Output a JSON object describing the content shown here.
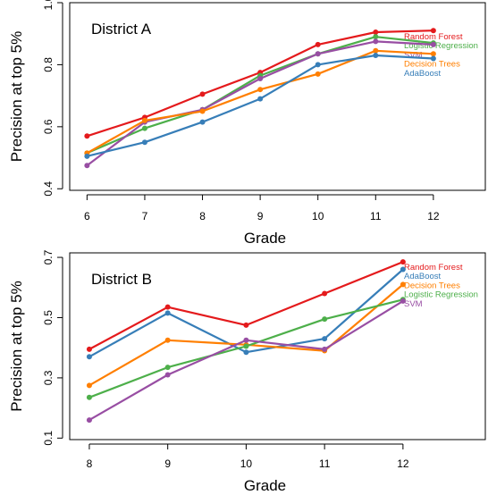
{
  "chart_data": [
    {
      "type": "line",
      "title": "District A",
      "xlabel": "Grade",
      "ylabel": "Precision at top 5%",
      "x": [
        6,
        7,
        8,
        9,
        10,
        11,
        12
      ],
      "xticks": [
        "6",
        "7",
        "8",
        "9",
        "10",
        "11",
        "12"
      ],
      "xlim": [
        5.7,
        12.9
      ],
      "ylim": [
        0.395,
        1.0
      ],
      "yticks": [
        "0.4",
        "0.6",
        "0.8",
        "1.0"
      ],
      "grid": false,
      "legend_position": "right",
      "series": [
        {
          "name": "Random Forest",
          "color": "#e41a1c",
          "values": [
            0.57,
            0.63,
            0.705,
            0.775,
            0.865,
            0.905,
            0.91
          ]
        },
        {
          "name": "Logistic Regression",
          "color": "#4daf4a",
          "values": [
            0.515,
            0.595,
            0.655,
            0.765,
            0.835,
            0.89,
            0.87
          ]
        },
        {
          "name": "SVM",
          "color": "#984ea3",
          "values": [
            0.475,
            0.615,
            0.655,
            0.755,
            0.835,
            0.875,
            0.865
          ]
        },
        {
          "name": "Decision Trees",
          "color": "#ff7f00",
          "values": [
            0.515,
            0.62,
            0.65,
            0.72,
            0.77,
            0.845,
            0.835
          ]
        },
        {
          "name": "AdaBoost",
          "color": "#377eb8",
          "values": [
            0.505,
            0.55,
            0.615,
            0.69,
            0.8,
            0.83,
            0.82
          ]
        }
      ]
    },
    {
      "type": "line",
      "title": "District B",
      "xlabel": "Grade",
      "ylabel": "Precision at top 5%",
      "x": [
        8,
        9,
        10,
        11,
        12
      ],
      "xticks": [
        "8",
        "9",
        "10",
        "11",
        "12"
      ],
      "xlim": [
        7.75,
        13.05
      ],
      "ylim": [
        0.095,
        0.715
      ],
      "yticks": [
        "0.1",
        "0.3",
        "0.5",
        "0.7"
      ],
      "grid": false,
      "legend_position": "right",
      "series": [
        {
          "name": "Random Forest",
          "color": "#e41a1c",
          "values": [
            0.395,
            0.535,
            0.475,
            0.58,
            0.685
          ]
        },
        {
          "name": "AdaBoost",
          "color": "#377eb8",
          "values": [
            0.37,
            0.515,
            0.385,
            0.43,
            0.66
          ]
        },
        {
          "name": "Decision Trees",
          "color": "#ff7f00",
          "values": [
            0.275,
            0.425,
            0.41,
            0.39,
            0.61
          ]
        },
        {
          "name": "Logistic Regression",
          "color": "#4daf4a",
          "values": [
            0.235,
            0.335,
            0.405,
            0.495,
            0.56
          ]
        },
        {
          "name": "SVM",
          "color": "#984ea3",
          "values": [
            0.16,
            0.31,
            0.425,
            0.395,
            0.555
          ]
        }
      ]
    }
  ]
}
